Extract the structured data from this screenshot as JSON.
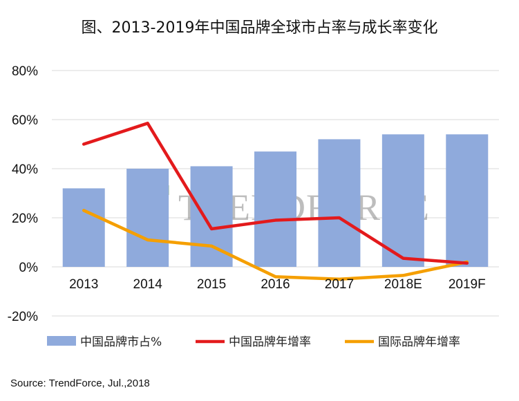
{
  "title": "图、2013-2019年中国品牌全球市占率与成长率变化",
  "source": "Source: TrendForce, Jul.,2018",
  "watermark": "TRENDFORCE",
  "colors": {
    "bars": "#8faadc",
    "china_growth": "#e31a1c",
    "intl_growth": "#f59f00",
    "grid": "#d9d9d9"
  },
  "chart_data": {
    "type": "bar",
    "categories": [
      "2013",
      "2014",
      "2015",
      "2016",
      "2017",
      "2018E",
      "2019F"
    ],
    "ylim": [
      -20,
      80
    ],
    "yticks": [
      -20,
      0,
      20,
      40,
      60,
      80
    ],
    "ytick_labels": [
      "-20%",
      "0%",
      "20%",
      "40%",
      "60%",
      "80%"
    ],
    "grid": true,
    "legend_position": "bottom",
    "series": [
      {
        "name": "中国品牌市占%",
        "kind": "bar",
        "values": [
          32,
          40,
          41,
          47,
          52,
          54,
          54
        ]
      },
      {
        "name": "中国品牌年增率",
        "kind": "line",
        "values": [
          50,
          58.5,
          15.5,
          19,
          20,
          3.5,
          1.5
        ]
      },
      {
        "name": "国际品牌年增率",
        "kind": "line",
        "values": [
          23,
          11,
          8.5,
          -4,
          -5,
          -3.5,
          2
        ]
      }
    ]
  }
}
